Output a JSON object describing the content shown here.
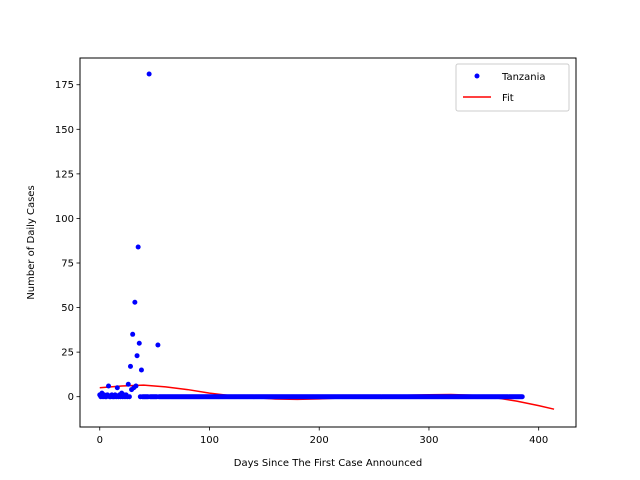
{
  "chart_data": {
    "type": "scatter",
    "title": "",
    "xlabel": "Days Since The First Case Announced",
    "ylabel": "Number of Daily Cases",
    "xlim": [
      -18,
      434
    ],
    "ylim": [
      -17,
      190
    ],
    "xticks": [
      0,
      100,
      200,
      300,
      400
    ],
    "yticks": [
      0,
      25,
      50,
      75,
      100,
      125,
      150,
      175
    ],
    "grid": false,
    "legend_position": "top-right",
    "colors": {
      "scatter": "#0000ff",
      "fit": "#ff0000",
      "axes": "#000000"
    },
    "series": [
      {
        "name": "Tanzania",
        "kind": "scatter",
        "marker": "circle",
        "notable_points": [
          [
            0,
            1
          ],
          [
            1,
            0
          ],
          [
            2,
            2
          ],
          [
            3,
            0
          ],
          [
            4,
            1
          ],
          [
            5,
            0
          ],
          [
            6,
            0
          ],
          [
            7,
            1
          ],
          [
            8,
            6
          ],
          [
            9,
            0
          ],
          [
            10,
            0
          ],
          [
            11,
            1
          ],
          [
            12,
            0
          ],
          [
            13,
            0
          ],
          [
            14,
            1
          ],
          [
            15,
            0
          ],
          [
            16,
            5
          ],
          [
            17,
            0
          ],
          [
            18,
            1
          ],
          [
            19,
            0
          ],
          [
            20,
            2
          ],
          [
            21,
            0
          ],
          [
            22,
            1
          ],
          [
            23,
            0
          ],
          [
            24,
            1
          ],
          [
            25,
            0
          ],
          [
            26,
            7
          ],
          [
            27,
            0
          ],
          [
            28,
            17
          ],
          [
            29,
            4
          ],
          [
            30,
            35
          ],
          [
            31,
            5
          ],
          [
            32,
            53
          ],
          [
            33,
            6
          ],
          [
            34,
            23
          ],
          [
            35,
            84
          ],
          [
            36,
            30
          ],
          [
            37,
            0
          ],
          [
            38,
            15
          ],
          [
            45,
            181
          ],
          [
            53,
            29
          ]
        ],
        "zero_range": [
          39,
          385
        ],
        "zero_value": 0
      },
      {
        "name": "Fit",
        "kind": "line",
        "x": [
          0,
          20,
          40,
          60,
          80,
          100,
          120,
          140,
          160,
          180,
          200,
          220,
          240,
          260,
          280,
          300,
          320,
          340,
          360,
          380,
          400,
          414
        ],
        "y": [
          5,
          6,
          6.5,
          5.5,
          4,
          2,
          0.5,
          -0.5,
          -1.3,
          -1.5,
          -1.2,
          -0.7,
          -0.2,
          0.3,
          0.8,
          1.1,
          1.2,
          0.8,
          -0.5,
          -2.5,
          -5,
          -7
        ]
      }
    ]
  }
}
